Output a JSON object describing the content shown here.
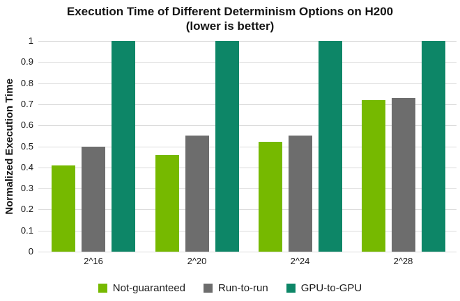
{
  "chart_data": {
    "type": "bar",
    "title": "Execution Time of Different Determinism Options on H200",
    "subtitle": "(lower is better)",
    "ylabel": "Normalized Execution Time",
    "xlabel": "",
    "categories": [
      "2^16",
      "2^20",
      "2^24",
      "2^28"
    ],
    "series": [
      {
        "name": "Not-guaranteed",
        "color": "#76b900",
        "values": [
          0.41,
          0.46,
          0.52,
          0.72
        ]
      },
      {
        "name": "Run-to-run",
        "color": "#6d6d6d",
        "values": [
          0.5,
          0.55,
          0.55,
          0.73
        ]
      },
      {
        "name": "GPU-to-GPU",
        "color": "#0d8667",
        "values": [
          1.0,
          1.0,
          1.0,
          1.0
        ]
      }
    ],
    "ylim": [
      0,
      1
    ],
    "ytick_labels": [
      "1",
      "0.9",
      "0.8",
      "0.7",
      "0.6",
      "0.5",
      "0.4",
      "0.3",
      "0.2",
      "0.1",
      "0"
    ],
    "ytick_values": [
      1,
      0.9,
      0.8,
      0.7,
      0.6,
      0.5,
      0.4,
      0.3,
      0.2,
      0.1,
      0
    ],
    "grid": true,
    "legend_position": "bottom",
    "colors": {
      "background": "#ffffff",
      "gridline": "#dcdcdc",
      "text": "#1a1a1a"
    }
  }
}
